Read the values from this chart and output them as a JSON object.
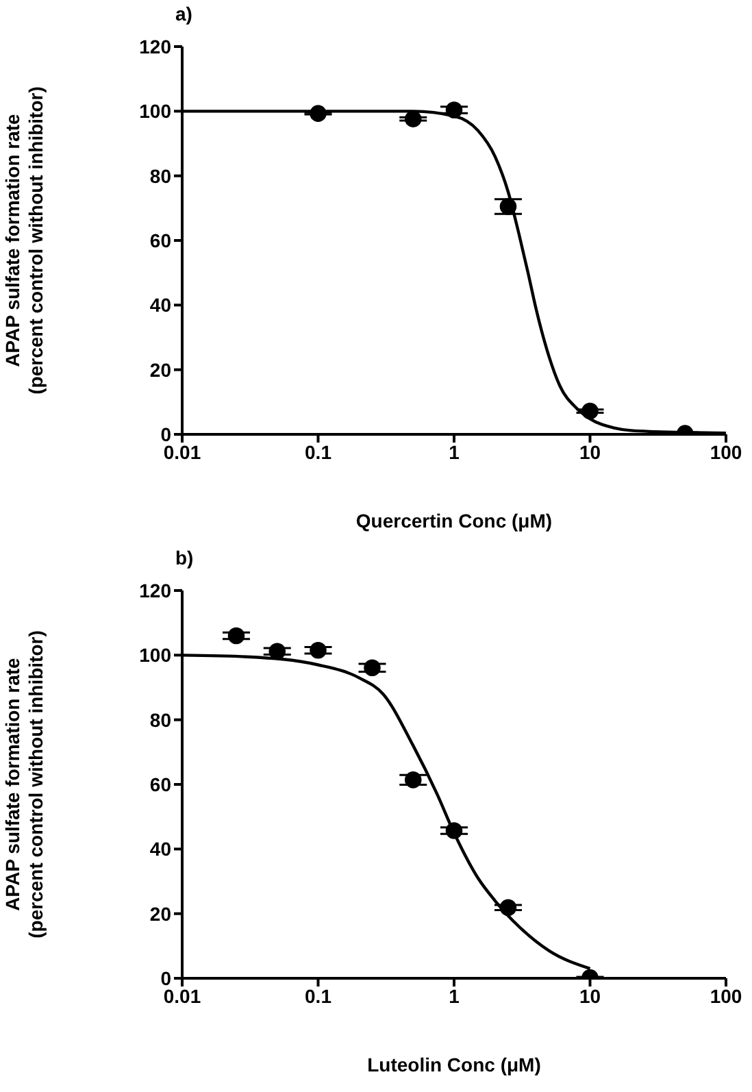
{
  "chart_data": [
    {
      "type": "scatter",
      "title": "a)",
      "xlabel": "Quercertin Conc (μM)",
      "ylabel": "APAP sulfate formation rate\n(percent control without inhibitor)",
      "log": "x",
      "xlim": [
        0.01,
        100
      ],
      "xticks": [
        0.01,
        0.1,
        1,
        10,
        100
      ],
      "ylim": [
        0,
        120
      ],
      "yticks": [
        0,
        20,
        40,
        60,
        80,
        100,
        120
      ],
      "marker": "circle",
      "series": [
        {
          "color": "#000000",
          "x": [
            0.1,
            0.5,
            1,
            2.5,
            10,
            50
          ],
          "values": [
            99.3,
            97.6,
            100.4,
            70.5,
            7.2,
            0.3
          ],
          "errors": [
            0.3,
            0.5,
            1,
            2.3,
            0.5,
            0.3
          ]
        },
        {
          "type": "line",
          "color": "#000000",
          "marker": "none",
          "x": [
            0.01,
            0.5,
            1,
            1.5,
            2,
            2.5,
            3,
            3.5,
            4,
            5,
            6,
            8,
            10,
            15,
            20,
            50,
            100
          ],
          "values": [
            100,
            100,
            98.5,
            94,
            86,
            75,
            62,
            50,
            39,
            24,
            15,
            8,
            4.8,
            2,
            1.2,
            0.6,
            0.4
          ]
        }
      ]
    },
    {
      "type": "scatter",
      "title": "b)",
      "xlabel": "Luteolin Conc (μM)",
      "ylabel": "APAP sulfate formation rate\n(percent control without inhibitor)",
      "log": "x",
      "xlim": [
        0.01,
        100
      ],
      "xticks": [
        0.01,
        0.1,
        1,
        10,
        100
      ],
      "ylim": [
        0,
        120
      ],
      "yticks": [
        0,
        20,
        40,
        60,
        80,
        100,
        120
      ],
      "marker": "circle",
      "series": [
        {
          "color": "#000000",
          "x": [
            0.025,
            0.05,
            0.1,
            0.25,
            0.5,
            1,
            2.5,
            10
          ],
          "values": [
            106,
            101.2,
            101.5,
            96.1,
            61.4,
            45.7,
            21.9,
            0.2
          ],
          "errors": [
            1,
            1,
            1,
            1.2,
            1.5,
            1,
            0.8,
            0.2
          ]
        },
        {
          "type": "line",
          "color": "#000000",
          "marker": "none",
          "x": [
            0.01,
            0.03,
            0.1,
            0.2,
            0.3,
            0.5,
            0.75,
            1,
            1.5,
            2,
            3,
            5,
            10
          ],
          "values": [
            100,
            99.5,
            97,
            93,
            88,
            72,
            57,
            45,
            31,
            24,
            16,
            8.5,
            3
          ]
        }
      ]
    }
  ]
}
